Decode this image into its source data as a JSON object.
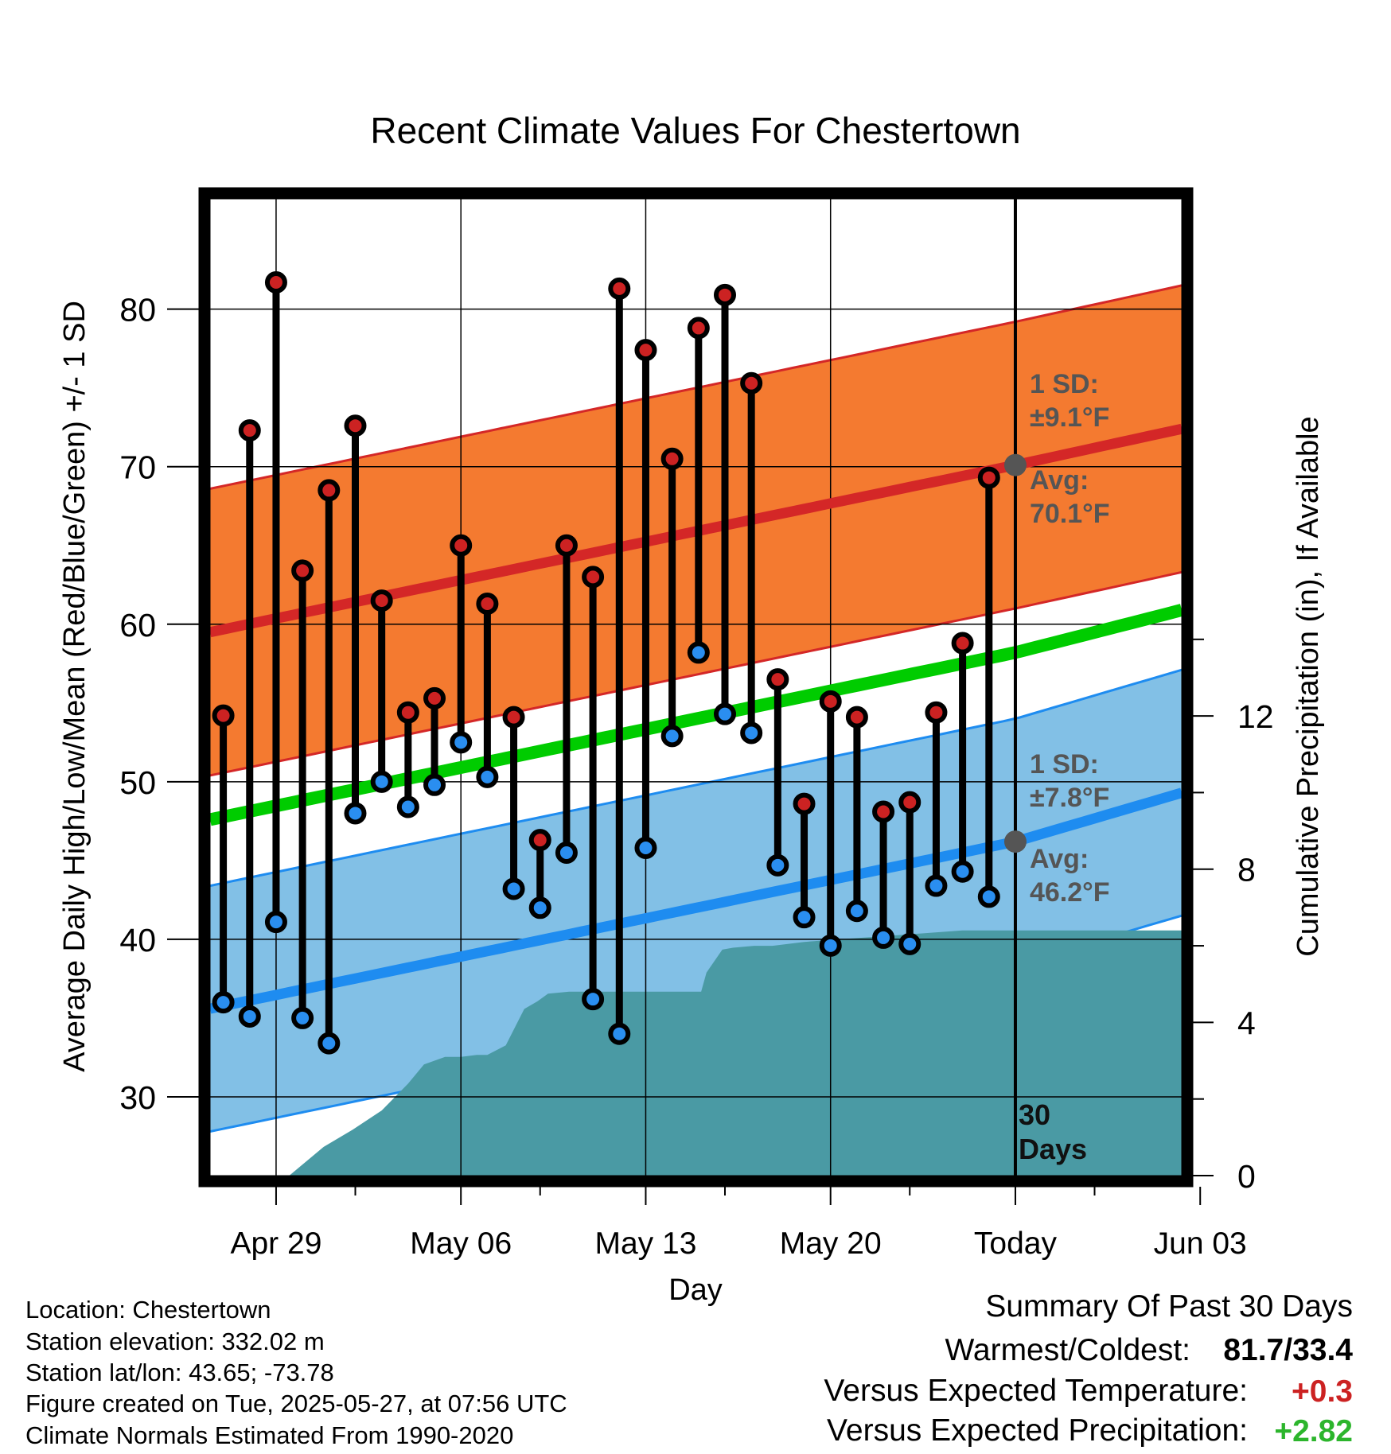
{
  "chart_data": {
    "type": "line",
    "title": "Recent Climate Values For Chestertown",
    "xlabel": "Day",
    "ylabel_left": "Average Daily High/Low/Mean (Red/Blue/Green) +/- 1 SD",
    "ylabel_right": "Cumulative Precipitation (in), If Available",
    "xlim_day": [
      -30.5,
      6.3
    ],
    "ylim_left": [
      25,
      87
    ],
    "ylim_right": [
      0,
      25.5
    ],
    "x_ticks": [
      {
        "day": -28,
        "label": "Apr 29"
      },
      {
        "day": -21,
        "label": "May 06"
      },
      {
        "day": -14,
        "label": "May 13"
      },
      {
        "day": -7,
        "label": "May 20"
      },
      {
        "day": 0,
        "label": "Today"
      },
      {
        "day": 7,
        "label": "Jun 03"
      }
    ],
    "y_ticks_left": [
      30,
      40,
      50,
      60,
      70,
      80
    ],
    "y_ticks_right": [
      0,
      4,
      8,
      12
    ],
    "normals": {
      "day": [
        -30.5,
        0,
        6.3
      ],
      "high_avg": [
        59.5,
        70.1,
        72.4
      ],
      "high_sd": 9.1,
      "low_avg": [
        35.6,
        46.2,
        49.3
      ],
      "low_sd": 7.8,
      "mean_avg": [
        47.6,
        58.2,
        60.9
      ]
    },
    "daily": [
      {
        "day": -30,
        "high": 54.2,
        "low": 36.0
      },
      {
        "day": -29,
        "high": 72.3,
        "low": 35.1
      },
      {
        "day": -28,
        "high": 81.7,
        "low": 41.1
      },
      {
        "day": -27,
        "high": 63.4,
        "low": 35.0
      },
      {
        "day": -26,
        "high": 68.5,
        "low": 33.4
      },
      {
        "day": -25,
        "high": 72.6,
        "low": 48.0
      },
      {
        "day": -24,
        "high": 61.5,
        "low": 50.0
      },
      {
        "day": -23,
        "high": 54.4,
        "low": 48.4
      },
      {
        "day": -22,
        "high": 55.3,
        "low": 49.8
      },
      {
        "day": -21,
        "high": 65.0,
        "low": 52.5
      },
      {
        "day": -20,
        "high": 61.3,
        "low": 50.3
      },
      {
        "day": -19,
        "high": 54.1,
        "low": 43.2
      },
      {
        "day": -18,
        "high": 46.3,
        "low": 42.0
      },
      {
        "day": -17,
        "high": 65.0,
        "low": 45.5
      },
      {
        "day": -16,
        "high": 63.0,
        "low": 36.2
      },
      {
        "day": -15,
        "high": 81.3,
        "low": 34.0
      },
      {
        "day": -14,
        "high": 77.4,
        "low": 45.8
      },
      {
        "day": -13,
        "high": 70.5,
        "low": 52.9
      },
      {
        "day": -12,
        "high": 78.8,
        "low": 58.2
      },
      {
        "day": -11,
        "high": 80.9,
        "low": 54.3
      },
      {
        "day": -10,
        "high": 75.3,
        "low": 53.1
      },
      {
        "day": -9,
        "high": 56.5,
        "low": 44.7
      },
      {
        "day": -8,
        "high": 48.6,
        "low": 41.4
      },
      {
        "day": -7,
        "high": 55.1,
        "low": 39.6
      },
      {
        "day": -6,
        "high": 54.1,
        "low": 41.8
      },
      {
        "day": -5,
        "high": 48.1,
        "low": 40.1
      },
      {
        "day": -4,
        "high": 48.7,
        "low": 39.7
      },
      {
        "day": -3,
        "high": 54.4,
        "low": 43.4
      },
      {
        "day": -2,
        "high": 58.8,
        "low": 44.3
      },
      {
        "day": -1,
        "high": 69.3,
        "low": 42.7
      }
    ],
    "precip_cumulative": {
      "day": [
        -28.2,
        -27.5,
        -26.2,
        -25.1,
        -24,
        -23,
        -22.4,
        -21.6,
        -21,
        -20.4,
        -20,
        -19.3,
        -18.6,
        -18.1,
        -17.7,
        -16.9,
        -16,
        -14,
        -12.2,
        -11.9,
        -11.7,
        -11.1,
        -10.7,
        -9.9,
        -9.2,
        -8,
        -6,
        -4,
        -2,
        -1,
        0,
        4,
        6.3
      ],
      "inches": [
        0,
        0,
        0.75,
        1.2,
        1.7,
        2.4,
        2.9,
        3.1,
        3.1,
        3.15,
        3.15,
        3.4,
        4.35,
        4.55,
        4.75,
        4.8,
        4.8,
        4.8,
        4.8,
        4.8,
        5.3,
        5.9,
        5.95,
        6.0,
        6.0,
        6.1,
        6.2,
        6.3,
        6.4,
        6.4,
        6.4,
        6.4,
        6.4
      ]
    },
    "annotations": {
      "high_sd_label": "1 SD:",
      "high_sd_value": "±9.1°F",
      "high_avg_label": "Avg:",
      "high_avg_value": "70.1°F",
      "low_sd_label": "1 SD:",
      "low_sd_value": "±7.8°F",
      "low_avg_label": "Avg:",
      "low_avg_value": "46.2°F",
      "days_num": "30",
      "days_word": "Days"
    },
    "colors": {
      "high_band": "#f47a30",
      "high_line": "#d42727",
      "low_band": "#82c0e6",
      "low_line": "#1e8cf0",
      "mean_line": "#00cc00",
      "precip": "#4a9aa4",
      "high_dot": "#cc2222",
      "low_dot": "#2a8ef0",
      "avg_marker": "#555555",
      "annotation_text": "#555555",
      "warm_anomaly": "#cc2222",
      "wet_anomaly": "#2cb52c"
    }
  },
  "info": {
    "location": "Location: Chestertown",
    "elevation": "Station elevation: 332.02 m",
    "latlon": "Station lat/lon: 43.65; -73.78",
    "created": "Figure created on Tue, 2025-05-27, at 07:56 UTC",
    "normals": "Climate Normals Estimated From 1990-2020"
  },
  "summary": {
    "title": "Summary Of Past 30 Days",
    "warmest_label": "Warmest/Coldest:",
    "warmest_value": "81.7/33.4",
    "temp_label": "Versus Expected Temperature:",
    "temp_value": "+0.3",
    "precip_label": "Versus Expected Precipitation:",
    "precip_value": "+2.82"
  }
}
